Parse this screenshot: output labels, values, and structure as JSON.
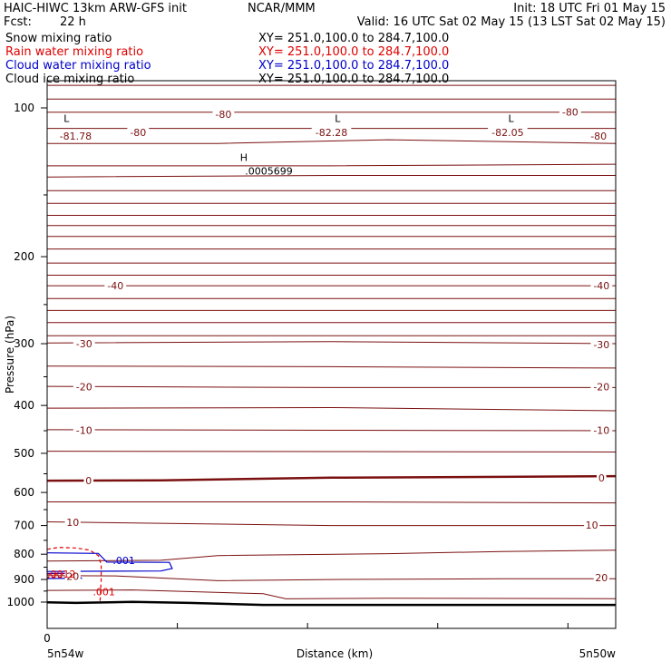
{
  "header": {
    "title_left": "HAIC-HIWC 13km ARW-GFS init",
    "org": "NCAR/MMM",
    "init": "Init: 18 UTC Fri 01 May 15",
    "fcst_label": "Fcst:",
    "fcst_value": "22 h",
    "valid": "Valid: 16 UTC Sat 02 May 15 (13 LST Sat 02 May 15)"
  },
  "fields": [
    {
      "name": "Snow mixing ratio",
      "xy": "XY= 251.0,100.0 to 284.7,100.0",
      "color": "#000000"
    },
    {
      "name": "Rain water mixing ratio",
      "xy": "XY= 251.0,100.0 to 284.7,100.0",
      "color": "#e00000"
    },
    {
      "name": "Cloud water mixing ratio",
      "xy": "XY= 251.0,100.0 to 284.7,100.0",
      "color": "#0000cc"
    },
    {
      "name": "Cloud ice mixing ratio",
      "xy": "XY= 251.0,100.0 to 284.7,100.0",
      "color": "#000000"
    }
  ],
  "chart_data": {
    "type": "contour-cross-section",
    "xlabel": "Distance (km)",
    "ylabel": "Pressure (hPa)",
    "x_start_label": "5n54w",
    "x_end_label": "5n50w",
    "x_tick_label_first": "0",
    "y_ticks": [
      100,
      200,
      300,
      400,
      500,
      600,
      700,
      800,
      900,
      1000
    ],
    "ylim": [
      1050,
      50
    ],
    "y_scale": "log",
    "temperature_labels": [
      {
        "text": "-81.78",
        "p": 114,
        "x": 0.05
      },
      {
        "text": "-80",
        "p": 112,
        "x": 0.16
      },
      {
        "text": "-80",
        "p": 103,
        "x": 0.31
      },
      {
        "text": "-82.28",
        "p": 112,
        "x": 0.5
      },
      {
        "text": "-82.05",
        "p": 112,
        "x": 0.81
      },
      {
        "text": "-80",
        "p": 102,
        "x": 0.92
      },
      {
        "text": "-80",
        "p": 114,
        "x": 0.97
      },
      {
        "text": "-40",
        "p": 229,
        "x": 0.12
      },
      {
        "text": "-40",
        "p": 229,
        "x": 0.975
      },
      {
        "text": "-30",
        "p": 300,
        "x": 0.065
      },
      {
        "text": "-30",
        "p": 301,
        "x": 0.975
      },
      {
        "text": "-20",
        "p": 367,
        "x": 0.065
      },
      {
        "text": "-20",
        "p": 367,
        "x": 0.975
      },
      {
        "text": "-10",
        "p": 449,
        "x": 0.065
      },
      {
        "text": "-10",
        "p": 449,
        "x": 0.975
      },
      {
        "text": "0",
        "p": 568,
        "x": 0.073
      },
      {
        "text": "0",
        "p": 560,
        "x": 0.975
      },
      {
        "text": "10",
        "p": 689,
        "x": 0.045
      },
      {
        "text": "10",
        "p": 699,
        "x": 0.958
      },
      {
        "text": "20",
        "p": 886,
        "x": 0.045
      },
      {
        "text": "20",
        "p": 892,
        "x": 0.975
      }
    ],
    "extremes": [
      {
        "kind": "L",
        "p": 105,
        "x": 0.018
      },
      {
        "kind": "L",
        "p": 105,
        "x": 0.495
      },
      {
        "kind": "L",
        "p": 105,
        "x": 0.8
      },
      {
        "kind": "H",
        "p": 126,
        "x": 0.33
      }
    ],
    "annotations": [
      {
        "text": ".0005699",
        "p": 134,
        "x": 0.39,
        "color": "#000000"
      },
      {
        "text": ".001",
        "p": 823,
        "x": 0.135,
        "color": "#0000cc"
      },
      {
        "text": ".001",
        "p": 952,
        "x": 0.1,
        "color": "#e00000"
      },
      {
        "text": ".0012",
        "p": 878,
        "x": 0.0,
        "color": "#e00000"
      }
    ],
    "colors": {
      "temperature": "#7b1010",
      "surface": "#000000",
      "rain": "#e00000",
      "cloud_water": "#0000cc"
    }
  }
}
